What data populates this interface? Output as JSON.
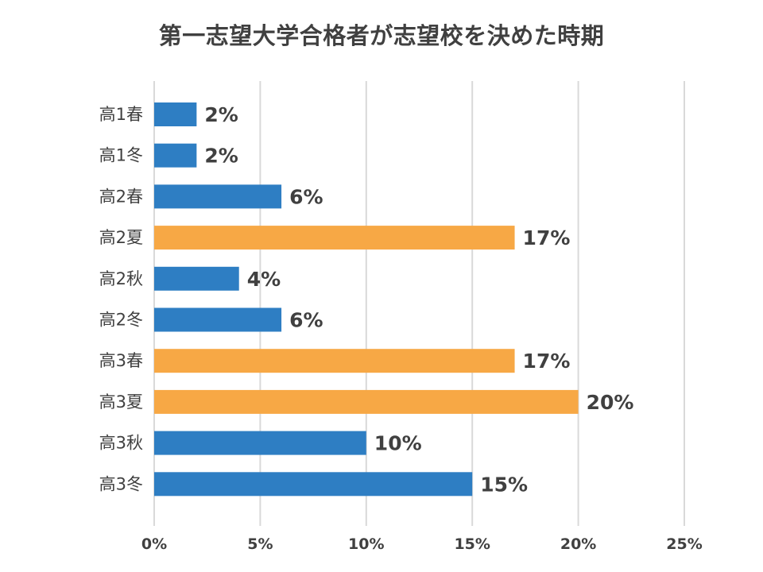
{
  "chart_data": {
    "type": "bar",
    "orientation": "horizontal",
    "title": "第一志望大学合格者が志望校を決めた時期",
    "xlabel": "",
    "ylabel": "",
    "categories": [
      "高1春",
      "高1冬",
      "高2春",
      "高2夏",
      "高2秋",
      "高2冬",
      "高3春",
      "高3夏",
      "高3秋",
      "高3冬"
    ],
    "values": [
      2,
      2,
      6,
      17,
      4,
      6,
      17,
      20,
      10,
      15
    ],
    "data_labels": [
      "2%",
      "2%",
      "6%",
      "17%",
      "4%",
      "6%",
      "17%",
      "20%",
      "10%",
      "15%"
    ],
    "highlight": [
      false,
      false,
      false,
      true,
      false,
      false,
      true,
      true,
      false,
      false
    ],
    "xlim": [
      0,
      25
    ],
    "xticks": [
      0,
      5,
      10,
      15,
      20,
      25
    ],
    "xtick_labels": [
      "0%",
      "5%",
      "10%",
      "15%",
      "20%",
      "25%"
    ],
    "grid": "vertical",
    "legend": "none",
    "colors": {
      "bar": "#2E7EC3",
      "highlight": "#F7A845",
      "grid": "#D9D9D9",
      "text": "#404040"
    }
  }
}
